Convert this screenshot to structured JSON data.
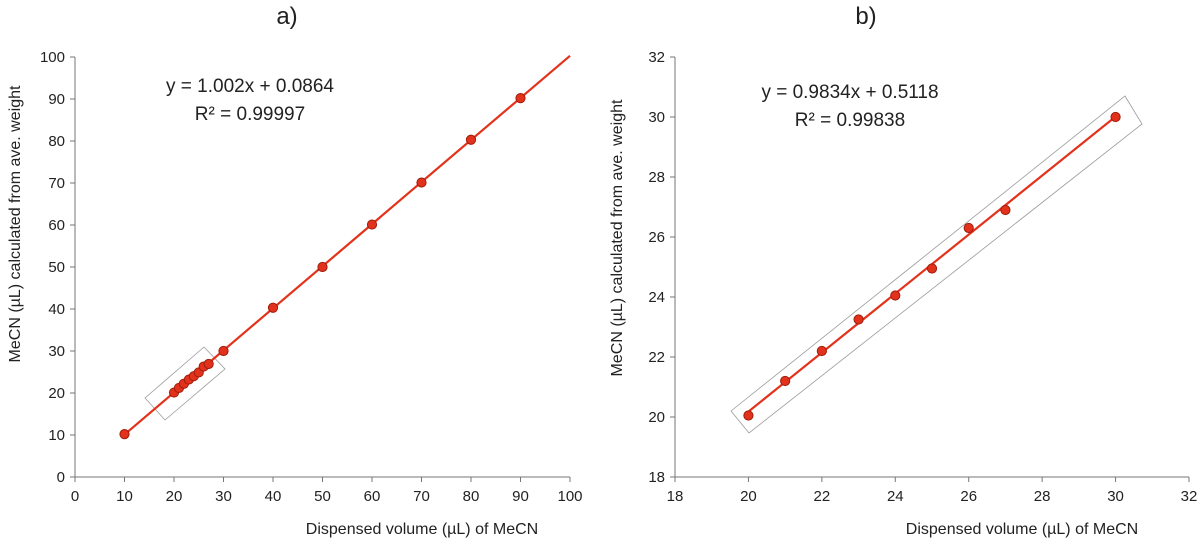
{
  "chart_data": [
    {
      "type": "scatter",
      "panel": "a",
      "title": "a)",
      "xlabel": "Dispensed volume (µL) of MeCN",
      "ylabel": "MeCN (µL) calculated from ave. weight",
      "xlim": [
        0,
        100
      ],
      "ylim": [
        0,
        100
      ],
      "xticks": [
        0,
        10,
        20,
        30,
        40,
        50,
        60,
        70,
        80,
        90,
        100
      ],
      "yticks": [
        0,
        10,
        20,
        30,
        40,
        50,
        60,
        70,
        80,
        90,
        100
      ],
      "grid": false,
      "series": [
        {
          "name": "MeCN",
          "x": [
            10,
            20,
            21,
            22,
            23,
            24,
            25,
            26,
            27,
            30,
            40,
            50,
            60,
            70,
            80,
            90
          ],
          "y": [
            10.2,
            20.1,
            21.2,
            22.2,
            23.2,
            24.0,
            24.9,
            26.3,
            26.9,
            30.0,
            40.3,
            50.0,
            60.1,
            70.1,
            80.3,
            90.2
          ]
        }
      ],
      "trendline": {
        "slope": 1.002,
        "intercept": 0.0864,
        "x_range": [
          10,
          100
        ]
      },
      "equation": "y = 1.002x + 0.0864",
      "r_squared": "R² = 0.99997",
      "highlight_box": "x 20–27 region"
    },
    {
      "type": "scatter",
      "panel": "b",
      "title": "b)",
      "xlabel": "Dispensed volume (µL) of MeCN",
      "ylabel": "MeCN (µL) calculated from ave. weight",
      "xlim": [
        18,
        32
      ],
      "ylim": [
        18,
        32
      ],
      "xticks": [
        18,
        20,
        22,
        24,
        26,
        28,
        30,
        32
      ],
      "yticks": [
        18,
        20,
        22,
        24,
        26,
        28,
        30,
        32
      ],
      "grid": false,
      "series": [
        {
          "name": "MeCN",
          "x": [
            20,
            21,
            22,
            23,
            24,
            25,
            26,
            27,
            30
          ],
          "y": [
            20.05,
            21.2,
            22.2,
            23.25,
            24.05,
            24.95,
            26.3,
            26.9,
            30.0
          ]
        }
      ],
      "trendline": {
        "slope": 0.9834,
        "intercept": 0.5118,
        "x_range": [
          20,
          30
        ]
      },
      "equation": "y = 0.9834x + 0.5118",
      "r_squared": "R² = 0.99838",
      "highlight_box": "around all points"
    }
  ],
  "colors": {
    "marker": "#e3321c",
    "marker_edge": "#9e1d0c",
    "trendline": "#e3321c",
    "axis": "#777777",
    "box": "#9a9a9a"
  }
}
